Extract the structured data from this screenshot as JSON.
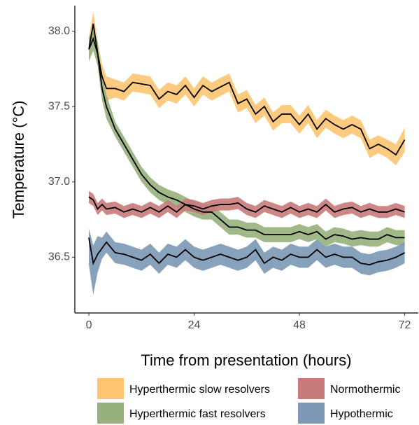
{
  "chart_data": {
    "type": "ribbon-line",
    "xlabel": "Time from presentation (hours)",
    "ylabel": "Temperature (°C)",
    "x": [
      0,
      1,
      2,
      3,
      4,
      6,
      8,
      10,
      12,
      14,
      16,
      18,
      20,
      22,
      24,
      26,
      28,
      30,
      32,
      34,
      36,
      38,
      40,
      42,
      44,
      46,
      48,
      50,
      52,
      54,
      56,
      58,
      60,
      62,
      64,
      66,
      68,
      70,
      72
    ],
    "xlim": [
      -3.2,
      75.1
    ],
    "xticks": [
      0,
      24,
      48,
      72
    ],
    "ylim": [
      36.13,
      38.17
    ],
    "yticks": [
      {
        "value": 36.5,
        "label": "36.5"
      },
      {
        "value": 37,
        "label": "37.0"
      },
      {
        "value": 37.5,
        "label": "37.5"
      },
      {
        "value": 38,
        "label": "38.0"
      }
    ],
    "line_color": "#000000",
    "series": [
      {
        "name": "Hyperthermic slow resolvers",
        "color": "#fdc571",
        "values": [
          37.88,
          38.05,
          37.85,
          37.7,
          37.62,
          37.62,
          37.6,
          37.66,
          37.65,
          37.64,
          37.55,
          37.6,
          37.58,
          37.64,
          37.56,
          37.64,
          37.6,
          37.63,
          37.66,
          37.52,
          37.55,
          37.45,
          37.5,
          37.4,
          37.45,
          37.45,
          37.38,
          37.45,
          37.35,
          37.42,
          37.38,
          37.35,
          37.38,
          37.35,
          37.22,
          37.25,
          37.22,
          37.18,
          37.28
        ],
        "upper": [
          37.96,
          38.13,
          37.93,
          37.78,
          37.7,
          37.68,
          37.66,
          37.72,
          37.71,
          37.7,
          37.61,
          37.66,
          37.64,
          37.7,
          37.62,
          37.7,
          37.66,
          37.69,
          37.72,
          37.58,
          37.61,
          37.51,
          37.56,
          37.46,
          37.51,
          37.51,
          37.44,
          37.51,
          37.41,
          37.48,
          37.44,
          37.41,
          37.44,
          37.41,
          37.28,
          37.31,
          37.28,
          37.25,
          37.36
        ],
        "lower": [
          37.8,
          37.97,
          37.77,
          37.62,
          37.54,
          37.56,
          37.54,
          37.6,
          37.59,
          37.58,
          37.49,
          37.54,
          37.52,
          37.58,
          37.5,
          37.58,
          37.54,
          37.57,
          37.6,
          37.46,
          37.49,
          37.39,
          37.44,
          37.34,
          37.39,
          37.39,
          37.32,
          37.39,
          37.29,
          37.36,
          37.32,
          37.29,
          37.32,
          37.29,
          37.16,
          37.19,
          37.16,
          37.11,
          37.2
        ]
      },
      {
        "name": "Hyperthermic fast resolvers",
        "color": "#97b07c",
        "values": [
          37.88,
          37.95,
          37.85,
          37.62,
          37.5,
          37.35,
          37.25,
          37.15,
          37.05,
          36.98,
          36.93,
          36.9,
          36.88,
          36.85,
          36.82,
          36.8,
          36.8,
          36.75,
          36.7,
          36.7,
          36.68,
          36.68,
          36.65,
          36.65,
          36.65,
          36.65,
          36.67,
          36.65,
          36.67,
          36.62,
          36.65,
          36.64,
          36.62,
          36.63,
          36.62,
          36.62,
          36.65,
          36.63,
          36.63
        ],
        "upper": [
          37.96,
          38.03,
          37.93,
          37.7,
          37.58,
          37.4,
          37.3,
          37.2,
          37.1,
          37.03,
          36.98,
          36.95,
          36.93,
          36.9,
          36.87,
          36.85,
          36.85,
          36.8,
          36.75,
          36.75,
          36.73,
          36.73,
          36.7,
          36.7,
          36.7,
          36.7,
          36.72,
          36.7,
          36.72,
          36.67,
          36.7,
          36.69,
          36.67,
          36.68,
          36.67,
          36.67,
          36.7,
          36.68,
          36.68
        ],
        "lower": [
          37.8,
          37.87,
          37.77,
          37.54,
          37.42,
          37.3,
          37.2,
          37.1,
          37.0,
          36.93,
          36.88,
          36.85,
          36.83,
          36.8,
          36.77,
          36.75,
          36.75,
          36.7,
          36.65,
          36.65,
          36.63,
          36.63,
          36.6,
          36.6,
          36.6,
          36.6,
          36.62,
          36.6,
          36.62,
          36.57,
          36.6,
          36.59,
          36.57,
          36.58,
          36.57,
          36.57,
          36.6,
          36.58,
          36.58
        ]
      },
      {
        "name": "Normothermic",
        "color": "#c87a7a",
        "values": [
          36.9,
          36.88,
          36.82,
          36.85,
          36.82,
          36.83,
          36.8,
          36.82,
          36.8,
          36.83,
          36.8,
          36.84,
          36.8,
          36.85,
          36.84,
          36.82,
          36.84,
          36.85,
          36.85,
          36.86,
          36.82,
          36.8,
          36.84,
          36.82,
          36.8,
          36.83,
          36.8,
          36.82,
          36.8,
          36.85,
          36.8,
          36.82,
          36.83,
          36.8,
          36.82,
          36.8,
          36.8,
          36.82,
          36.8
        ],
        "upper": [
          36.94,
          36.92,
          36.86,
          36.89,
          36.86,
          36.87,
          36.84,
          36.86,
          36.84,
          36.87,
          36.84,
          36.88,
          36.84,
          36.89,
          36.88,
          36.86,
          36.88,
          36.89,
          36.89,
          36.9,
          36.86,
          36.84,
          36.88,
          36.86,
          36.84,
          36.87,
          36.84,
          36.86,
          36.84,
          36.89,
          36.84,
          36.86,
          36.87,
          36.84,
          36.86,
          36.84,
          36.84,
          36.86,
          36.84
        ],
        "lower": [
          36.86,
          36.84,
          36.78,
          36.81,
          36.78,
          36.79,
          36.76,
          36.78,
          36.76,
          36.79,
          36.76,
          36.8,
          36.76,
          36.81,
          36.8,
          36.78,
          36.8,
          36.81,
          36.81,
          36.82,
          36.78,
          36.76,
          36.8,
          36.78,
          36.76,
          36.79,
          36.76,
          36.78,
          36.76,
          36.81,
          36.76,
          36.78,
          36.79,
          36.76,
          36.78,
          36.76,
          36.76,
          36.78,
          36.76
        ]
      },
      {
        "name": "Hypothermic",
        "color": "#7c98b5",
        "values": [
          36.63,
          36.46,
          36.52,
          36.56,
          36.6,
          36.53,
          36.52,
          36.5,
          36.48,
          36.52,
          36.46,
          36.52,
          36.5,
          36.55,
          36.5,
          36.48,
          36.5,
          36.52,
          36.5,
          36.48,
          36.5,
          36.55,
          36.46,
          36.5,
          36.48,
          36.52,
          36.5,
          36.5,
          36.55,
          36.5,
          36.52,
          36.5,
          36.5,
          36.46,
          36.45,
          36.47,
          36.48,
          36.5,
          36.53
        ],
        "upper": [
          36.69,
          36.58,
          36.64,
          36.63,
          36.67,
          36.6,
          36.59,
          36.57,
          36.55,
          36.59,
          36.53,
          36.59,
          36.57,
          36.62,
          36.57,
          36.55,
          36.57,
          36.59,
          36.57,
          36.55,
          36.57,
          36.62,
          36.53,
          36.57,
          36.55,
          36.59,
          36.57,
          36.57,
          36.62,
          36.57,
          36.59,
          36.57,
          36.57,
          36.53,
          36.52,
          36.54,
          36.55,
          36.57,
          36.6
        ],
        "lower": [
          36.45,
          36.25,
          36.4,
          36.49,
          36.53,
          36.46,
          36.45,
          36.43,
          36.41,
          36.45,
          36.39,
          36.45,
          36.43,
          36.48,
          36.43,
          36.41,
          36.43,
          36.45,
          36.43,
          36.41,
          36.43,
          36.48,
          36.39,
          36.43,
          36.41,
          36.45,
          36.43,
          36.43,
          36.48,
          36.43,
          36.45,
          36.43,
          36.43,
          36.39,
          36.38,
          36.4,
          36.41,
          36.43,
          36.46
        ]
      }
    ]
  }
}
